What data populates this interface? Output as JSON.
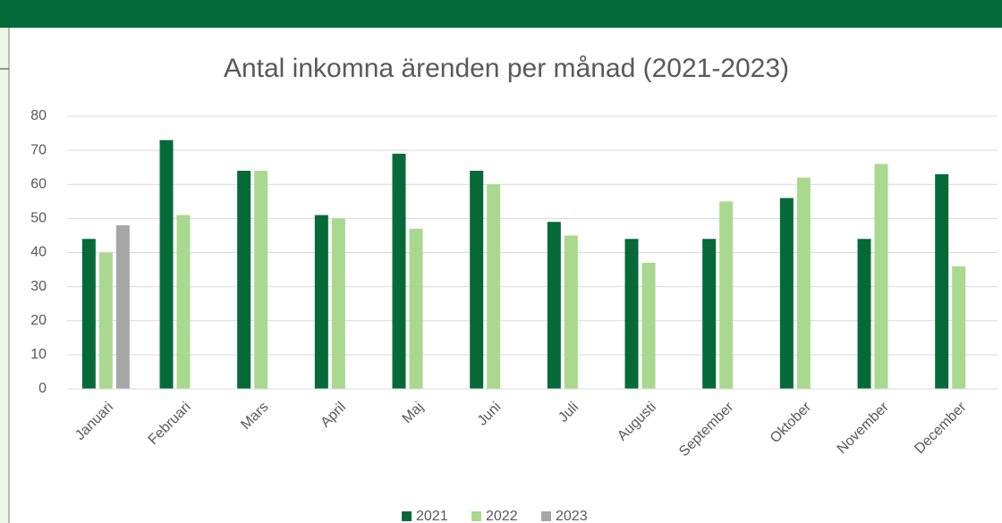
{
  "chart_data": {
    "type": "bar",
    "title": "Antal inkomna ärenden per månad (2021-2023)",
    "categories": [
      "Januari",
      "Februari",
      "Mars",
      "April",
      "Maj",
      "Juni",
      "Juli",
      "Augusti",
      "September",
      "Oktober",
      "November",
      "December"
    ],
    "series": [
      {
        "name": "2021",
        "color": "#056a38",
        "values": [
          44,
          73,
          64,
          51,
          69,
          64,
          49,
          44,
          44,
          56,
          44,
          63
        ]
      },
      {
        "name": "2022",
        "color": "#a9d98f",
        "values": [
          40,
          51,
          64,
          50,
          47,
          60,
          45,
          37,
          55,
          62,
          66,
          36
        ]
      },
      {
        "name": "2023",
        "color": "#a6a6a6",
        "values": [
          48,
          null,
          null,
          null,
          null,
          null,
          null,
          null,
          null,
          null,
          null,
          null
        ]
      }
    ],
    "ylim": [
      0,
      80
    ],
    "yticks": [
      0,
      10,
      20,
      30,
      40,
      50,
      60,
      70,
      80
    ],
    "grid": true,
    "legend": "bottom"
  }
}
